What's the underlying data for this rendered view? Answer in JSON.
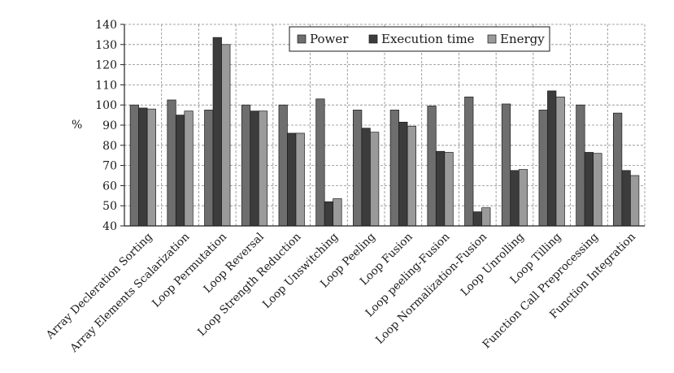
{
  "chart_data": {
    "type": "bar",
    "ylabel": "%",
    "ylim": [
      40,
      140
    ],
    "yticks": [
      40,
      50,
      60,
      70,
      80,
      90,
      100,
      110,
      120,
      130,
      140
    ],
    "grid": true,
    "legend_position": "top-right",
    "categories": [
      "Array Decleration Sorting",
      "Array Elements Scalarization",
      "Loop Permutation",
      "Loop Reversal",
      "Loop Strength Reduction",
      "Loop Unswitching",
      "Loop Peeling",
      "Loop Fusion",
      "Loop peeling-Fusion",
      "Loop Normalization-Fusion",
      "Loop Unrolling",
      "Loop Tilling",
      "Function Call Preprocessing",
      "Function Integration"
    ],
    "series": [
      {
        "name": "Power",
        "color": "#6e6e6e",
        "values": [
          100,
          102.5,
          97.5,
          100,
          100,
          103,
          97.5,
          97.5,
          99.5,
          104,
          100.5,
          97.5,
          100,
          96
        ]
      },
      {
        "name": "Execution time",
        "color": "#3c3c3c",
        "values": [
          98.5,
          95,
          133.5,
          97,
          86,
          52,
          88.5,
          91.5,
          77,
          47,
          67.5,
          107,
          76.5,
          67.5
        ]
      },
      {
        "name": "Energy",
        "color": "#9a9a9a",
        "values": [
          98,
          97,
          130,
          97,
          86,
          53.5,
          86.5,
          89.5,
          76.5,
          49,
          68,
          104,
          76,
          65
        ]
      }
    ]
  }
}
